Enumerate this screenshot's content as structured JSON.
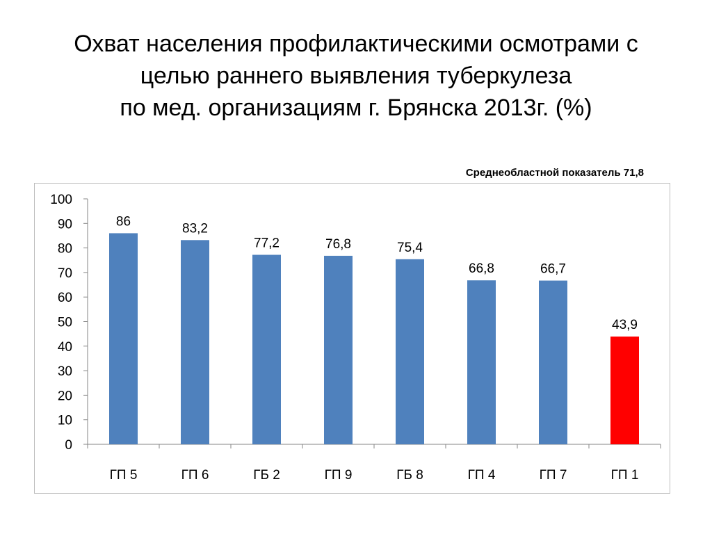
{
  "title": {
    "lines": [
      "Охват населения профилактическими осмотрами с",
      "целью раннего выявления туберкулеза",
      "по мед. организациям г. Брянска 2013г. (%)"
    ]
  },
  "regional_note": "Среднеобластной показатель 71,8",
  "chart_data": {
    "type": "bar",
    "title": "",
    "xlabel": "",
    "ylabel": "",
    "ylim": [
      0,
      100
    ],
    "yticks": [
      0,
      10,
      20,
      30,
      40,
      50,
      60,
      70,
      80,
      90,
      100
    ],
    "categories": [
      "ГП 5",
      "ГП 6",
      "ГБ 2",
      "ГП 9",
      "ГБ 8",
      "ГП 4",
      "ГП 7",
      "ГП 1"
    ],
    "values": [
      86,
      83.2,
      77.2,
      76.8,
      75.4,
      66.8,
      66.7,
      43.9
    ],
    "data_labels": [
      "86",
      "83,2",
      "77,2",
      "76,8",
      "75,4",
      "66,8",
      "66,7",
      "43,9"
    ],
    "colors": [
      "#4f81bd",
      "#4f81bd",
      "#4f81bd",
      "#4f81bd",
      "#4f81bd",
      "#4f81bd",
      "#4f81bd",
      "#ff0000"
    ],
    "grid": false,
    "legend": "none"
  }
}
